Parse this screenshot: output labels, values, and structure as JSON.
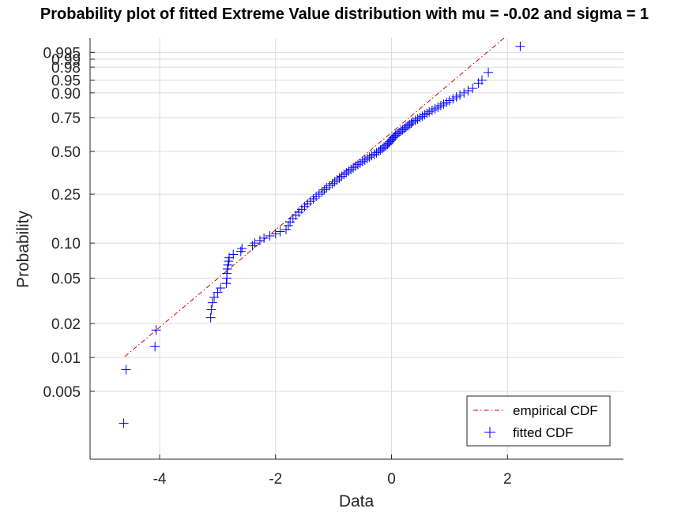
{
  "chart_data": {
    "type": "scatter",
    "title": "Probability plot of fitted Extreme Value distribution with mu = -0.02 and sigma = 1",
    "xlabel": "Data",
    "ylabel": "Probability",
    "xlim": [
      -5.2,
      4.0
    ],
    "x_ticks": [
      -4,
      -2,
      0,
      2
    ],
    "x_tick_labels": [
      "-4",
      "-2",
      "0",
      "2"
    ],
    "y_scale": "extreme-value (Gumbel min) probability scale",
    "y_ticks": [
      0.005,
      0.01,
      0.02,
      0.05,
      0.1,
      0.25,
      0.5,
      0.75,
      0.9,
      0.95,
      0.98,
      0.99,
      0.995
    ],
    "y_tick_labels": [
      "0.005",
      "0.01",
      "0.02",
      "0.05",
      "0.10",
      "0.25",
      "0.50",
      "0.75",
      "0.90",
      "0.95",
      "0.98",
      "0.99",
      "0.995"
    ],
    "grid": true,
    "legend": {
      "position": "bottom-right",
      "entries": [
        "empirical CDF",
        "fitted CDF"
      ]
    },
    "fit": {
      "mu": -0.02,
      "sigma": 1
    },
    "series": [
      {
        "name": "empirical CDF",
        "style": "dash-dot line",
        "color": "#cc0000",
        "x": [
          -4.6,
          1.95
        ]
      },
      {
        "name": "fitted CDF",
        "style": "plus markers",
        "color": "#0000ff",
        "points": [
          [
            -4.62,
            0.0026
          ],
          [
            -4.58,
            0.0078
          ],
          [
            -4.08,
            0.0125
          ],
          [
            -4.06,
            0.0175
          ],
          [
            -3.12,
            0.0225
          ],
          [
            -3.11,
            0.0265
          ],
          [
            -3.09,
            0.0305
          ],
          [
            -3.06,
            0.034
          ],
          [
            -3.0,
            0.0375
          ],
          [
            -2.95,
            0.041
          ],
          [
            -2.85,
            0.045
          ],
          [
            -2.84,
            0.05
          ],
          [
            -2.84,
            0.055
          ],
          [
            -2.83,
            0.06
          ],
          [
            -2.82,
            0.065
          ],
          [
            -2.81,
            0.07
          ],
          [
            -2.8,
            0.075
          ],
          [
            -2.73,
            0.08
          ],
          [
            -2.6,
            0.085
          ],
          [
            -2.58,
            0.09
          ],
          [
            -2.4,
            0.095
          ],
          [
            -2.36,
            0.1
          ],
          [
            -2.27,
            0.105
          ],
          [
            -2.2,
            0.11
          ],
          [
            -2.1,
            0.115
          ],
          [
            -2.0,
            0.12
          ],
          [
            -1.92,
            0.125
          ],
          [
            -1.82,
            0.13
          ],
          [
            -1.78,
            0.14
          ],
          [
            -1.75,
            0.15
          ],
          [
            -1.7,
            0.16
          ],
          [
            -1.65,
            0.17
          ],
          [
            -1.6,
            0.18
          ],
          [
            -1.55,
            0.19
          ],
          [
            -1.5,
            0.2
          ],
          [
            -1.45,
            0.21
          ],
          [
            -1.4,
            0.22
          ],
          [
            -1.35,
            0.23
          ],
          [
            -1.3,
            0.24
          ],
          [
            -1.25,
            0.25
          ],
          [
            -1.2,
            0.26
          ],
          [
            -1.16,
            0.27
          ],
          [
            -1.12,
            0.28
          ],
          [
            -1.07,
            0.29
          ],
          [
            -1.02,
            0.3
          ],
          [
            -0.98,
            0.31
          ],
          [
            -0.94,
            0.32
          ],
          [
            -0.9,
            0.33
          ],
          [
            -0.86,
            0.34
          ],
          [
            -0.82,
            0.35
          ],
          [
            -0.78,
            0.36
          ],
          [
            -0.74,
            0.37
          ],
          [
            -0.7,
            0.38
          ],
          [
            -0.66,
            0.39
          ],
          [
            -0.62,
            0.4
          ],
          [
            -0.58,
            0.41
          ],
          [
            -0.54,
            0.42
          ],
          [
            -0.5,
            0.43
          ],
          [
            -0.46,
            0.44
          ],
          [
            -0.42,
            0.45
          ],
          [
            -0.38,
            0.46
          ],
          [
            -0.34,
            0.47
          ],
          [
            -0.3,
            0.48
          ],
          [
            -0.26,
            0.49
          ],
          [
            -0.22,
            0.5
          ],
          [
            -0.19,
            0.51
          ],
          [
            -0.16,
            0.52
          ],
          [
            -0.13,
            0.53
          ],
          [
            -0.1,
            0.54
          ],
          [
            -0.07,
            0.55
          ],
          [
            -0.05,
            0.56
          ],
          [
            -0.03,
            0.57
          ],
          [
            -0.01,
            0.58
          ],
          [
            0.01,
            0.59
          ],
          [
            0.03,
            0.6
          ],
          [
            0.05,
            0.61
          ],
          [
            0.07,
            0.62
          ],
          [
            0.1,
            0.63
          ],
          [
            0.13,
            0.64
          ],
          [
            0.16,
            0.65
          ],
          [
            0.19,
            0.66
          ],
          [
            0.22,
            0.67
          ],
          [
            0.25,
            0.68
          ],
          [
            0.28,
            0.69
          ],
          [
            0.31,
            0.7
          ],
          [
            0.34,
            0.71
          ],
          [
            0.37,
            0.72
          ],
          [
            0.41,
            0.73
          ],
          [
            0.45,
            0.74
          ],
          [
            0.49,
            0.75
          ],
          [
            0.53,
            0.76
          ],
          [
            0.57,
            0.77
          ],
          [
            0.61,
            0.78
          ],
          [
            0.65,
            0.79
          ],
          [
            0.7,
            0.8
          ],
          [
            0.75,
            0.81
          ],
          [
            0.8,
            0.82
          ],
          [
            0.85,
            0.83
          ],
          [
            0.9,
            0.84
          ],
          [
            0.95,
            0.85
          ],
          [
            1.0,
            0.86
          ],
          [
            1.06,
            0.87
          ],
          [
            1.12,
            0.88
          ],
          [
            1.18,
            0.89
          ],
          [
            1.25,
            0.9
          ],
          [
            1.32,
            0.91
          ],
          [
            1.4,
            0.92
          ],
          [
            1.5,
            0.94
          ],
          [
            1.56,
            0.95
          ],
          [
            1.67,
            0.97
          ],
          [
            2.22,
            0.9975
          ]
        ]
      }
    ]
  }
}
